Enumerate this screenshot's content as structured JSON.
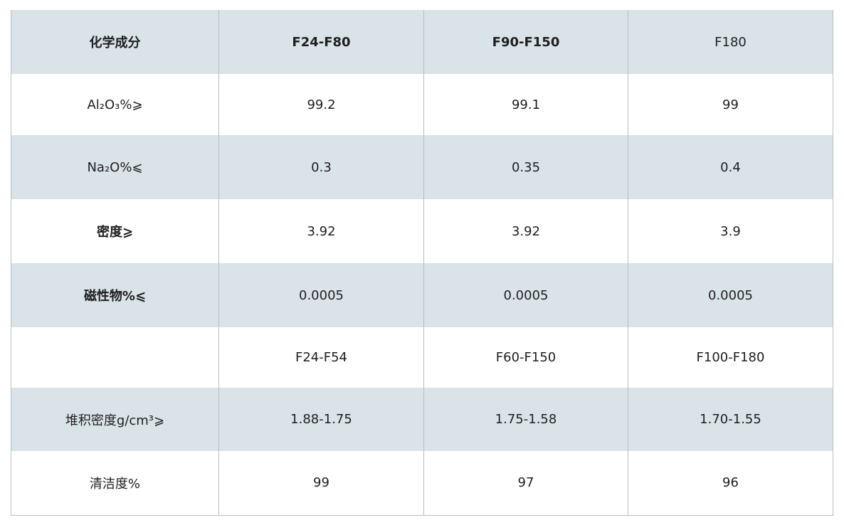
{
  "table": {
    "header": [
      "化学成分",
      "F24-F80",
      "F90-F150",
      "F180"
    ],
    "rows": [
      [
        "Al₂O₃%⩾",
        "99.2",
        "99.1",
        "99"
      ],
      [
        "Na₂O%⩽",
        "0.3",
        "0.35",
        "0.4"
      ],
      [
        "密度⩾",
        "3.92",
        "3.92",
        "3.9"
      ],
      [
        "磁性物%⩽",
        "0.0005",
        "0.0005",
        "0.0005"
      ],
      [
        "",
        "F24-F54",
        "F60-F150",
        "F100-F180"
      ],
      [
        "堆积密度g/cm³⩾",
        "1.88-1.75",
        "1.75-1.58",
        "1.70-1.55"
      ],
      [
        "清洁度%",
        "99",
        "97",
        "96"
      ]
    ]
  },
  "colors": {
    "shaded_row": "#dae3e8",
    "plain_row": "#ffffff",
    "grid_line": "#b8bec4"
  }
}
